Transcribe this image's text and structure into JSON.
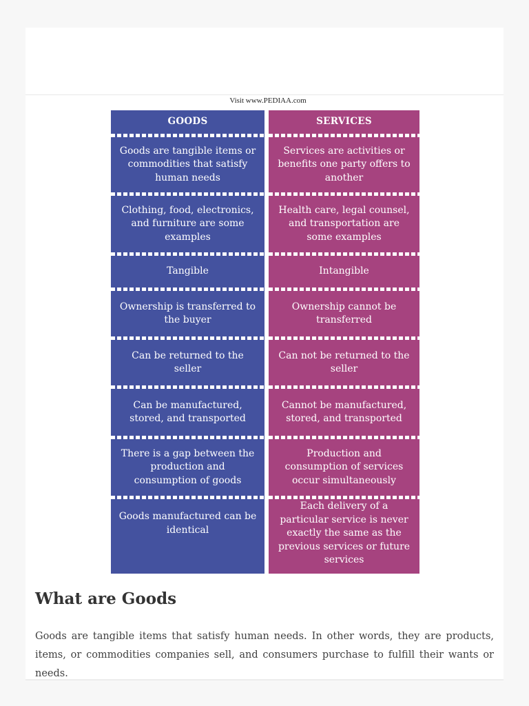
{
  "infographic": {
    "credit": "Visit www.PEDIAA.com",
    "goods_color": "#44529f",
    "services_color": "#a6437f",
    "goods": {
      "header": "GOODS",
      "rows": [
        "Goods are tangible items or commodities that satisfy human needs",
        "Clothing, food, electronics, and furniture are some examples",
        "Tangible",
        "Ownership is transferred to the buyer",
        "Can be returned to the seller",
        "Can be manufactured, stored, and transported",
        "There is a gap between the production and consumption of goods",
        "Goods manufactured can be identical"
      ]
    },
    "services": {
      "header": "SERVICES",
      "rows": [
        "Services are activities or benefits one party offers to another",
        "Health care, legal counsel, and transportation are some examples",
        "Intangible",
        "Ownership cannot be transferred",
        "Can not be returned to the seller",
        "Cannot be manufactured, stored, and transported",
        "Production and consumption of services occur simultaneously",
        "Each delivery of a particular service is never exactly the same as the previous services or future services"
      ]
    }
  },
  "article": {
    "heading": "What are Goods",
    "paragraph": "Goods are tangible items that satisfy human needs. In other words, they are products, items, or commodities companies sell, and consumers purchase to fulfill their wants or needs."
  }
}
